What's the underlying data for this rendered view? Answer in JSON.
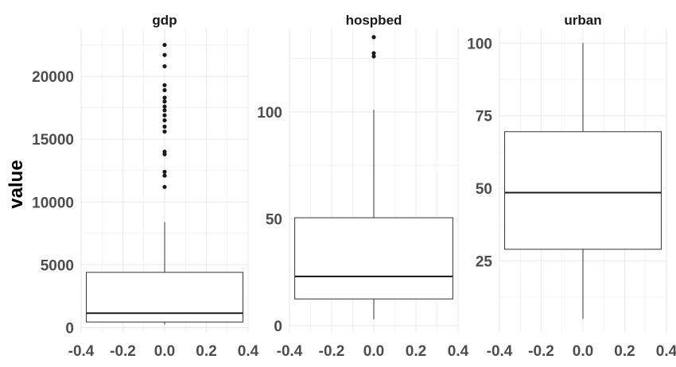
{
  "figure": {
    "ylabel": "value"
  },
  "colors": {
    "grid": "#ebebeb",
    "box_stroke": "#333333",
    "median": "#1a1a1a",
    "outlier": "#1a1a1a",
    "tick_label": "#4d4d4d",
    "strip_title": "#1a1a1a"
  },
  "chart_data": [
    {
      "type": "box",
      "title": "gdp",
      "xlim": [
        -0.4,
        0.4
      ],
      "x_ticks": [
        "-0.4",
        "-0.2",
        "0.0",
        "0.2",
        "0.4"
      ],
      "ylim": [
        -350,
        23800
      ],
      "y_ticks": [
        0,
        5000,
        10000,
        15000,
        20000
      ],
      "y_tick_labels": [
        "0",
        "5000",
        "10000",
        "15000",
        "20000"
      ],
      "grid": true,
      "box": {
        "min": 250,
        "q1": 450,
        "median": 1150,
        "q3": 4400,
        "max": 8400
      },
      "outliers": [
        11200,
        12100,
        12400,
        13800,
        14000,
        15600,
        16000,
        16500,
        16900,
        17300,
        17600,
        18000,
        18300,
        18900,
        19300,
        20800,
        21700,
        22500
      ]
    },
    {
      "type": "box",
      "title": "hospbed",
      "xlim": [
        -0.4,
        0.4
      ],
      "x_ticks": [
        "-0.4",
        "-0.2",
        "0.0",
        "0.2",
        "0.4"
      ],
      "ylim": [
        -3,
        139
      ],
      "y_ticks": [
        0,
        50,
        100
      ],
      "y_tick_labels": [
        "0",
        "50",
        "100"
      ],
      "grid": true,
      "box": {
        "min": 3,
        "q1": 12.5,
        "median": 23,
        "q3": 50.5,
        "max": 101
      },
      "outliers": [
        126,
        127.5,
        135
      ]
    },
    {
      "type": "box",
      "title": "urban",
      "xlim": [
        -0.4,
        0.4
      ],
      "x_ticks": [
        "-0.4",
        "-0.2",
        "0.0",
        "0.2",
        "0.4"
      ],
      "ylim": [
        0.5,
        105
      ],
      "y_ticks": [
        25,
        50,
        75,
        100
      ],
      "y_tick_labels": [
        "25",
        "50",
        "75",
        "100"
      ],
      "grid": true,
      "box": {
        "min": 5,
        "q1": 29,
        "median": 48.5,
        "q3": 69.5,
        "max": 100
      },
      "outliers": []
    }
  ]
}
